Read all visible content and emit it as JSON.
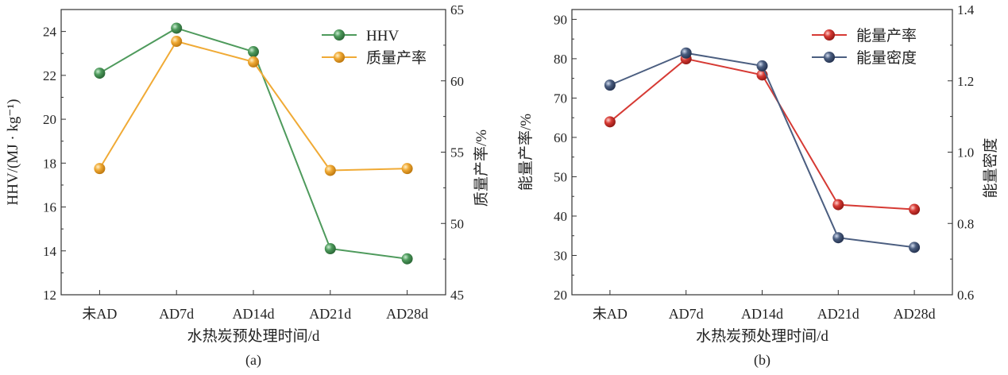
{
  "chart_data": [
    {
      "type": "line",
      "panel_label": "(a)",
      "xlabel": "水热炭预处理时间/d",
      "ylabel": "HHV/(MJ · kg⁻¹)",
      "ylabel_right": "质量产率/%",
      "categories": [
        "未AD",
        "AD7d",
        "AD14d",
        "AD21d",
        "AD28d"
      ],
      "ylim": [
        12,
        25
      ],
      "yticks": [
        12,
        14,
        16,
        18,
        20,
        22,
        24
      ],
      "ylim_right": [
        45,
        65
      ],
      "yticks_right": [
        45,
        50,
        55,
        60,
        65
      ],
      "legend_position": "top-right",
      "grid": false,
      "series": [
        {
          "name": "HHV",
          "axis": "left",
          "color": "#4e9a5c",
          "values": [
            22.1,
            24.15,
            23.08,
            14.1,
            13.64
          ]
        },
        {
          "name": "质量产率",
          "axis": "right",
          "color": "#f0aa35",
          "values": [
            53.85,
            62.77,
            61.33,
            53.72,
            53.85
          ]
        }
      ]
    },
    {
      "type": "line",
      "panel_label": "(b)",
      "xlabel": "水热炭预处理时间/d",
      "ylabel": "能量产率/%",
      "ylabel_right": "能量密度",
      "categories": [
        "未AD",
        "AD7d",
        "AD14d",
        "AD21d",
        "AD28d"
      ],
      "ylim": [
        20,
        92.5
      ],
      "yticks": [
        20,
        30,
        40,
        50,
        60,
        70,
        80,
        90
      ],
      "ylim_right": [
        0.6,
        1.4
      ],
      "yticks_right": [
        0.6,
        0.8,
        1.0,
        1.2,
        1.4
      ],
      "legend_position": "top-right",
      "grid": false,
      "series": [
        {
          "name": "能量产率",
          "axis": "left",
          "color": "#d63a34",
          "values": [
            63.96,
            79.97,
            75.87,
            42.9,
            41.7
          ]
        },
        {
          "name": "能量密度",
          "axis": "right",
          "color": "#4b5e80",
          "values": [
            1.188,
            1.278,
            1.242,
            0.76,
            0.733
          ]
        }
      ]
    }
  ]
}
